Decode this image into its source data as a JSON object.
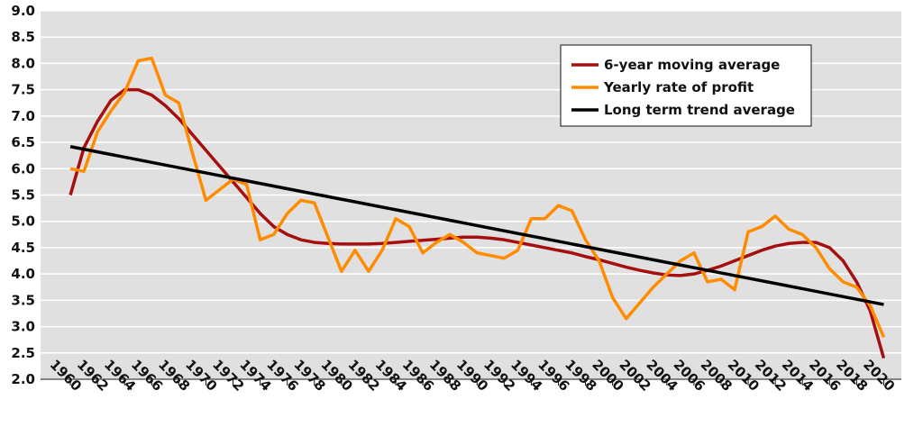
{
  "chart_data": {
    "type": "line",
    "x": [
      1960,
      1961,
      1962,
      1963,
      1964,
      1965,
      1966,
      1967,
      1968,
      1969,
      1970,
      1971,
      1972,
      1973,
      1974,
      1975,
      1976,
      1977,
      1978,
      1979,
      1980,
      1981,
      1982,
      1983,
      1984,
      1985,
      1986,
      1987,
      1988,
      1989,
      1990,
      1991,
      1992,
      1993,
      1994,
      1995,
      1996,
      1997,
      1998,
      1999,
      2000,
      2001,
      2002,
      2003,
      2004,
      2005,
      2006,
      2007,
      2008,
      2009,
      2010,
      2011,
      2012,
      2013,
      2014,
      2015,
      2016,
      2017,
      2018,
      2019,
      2020
    ],
    "series": [
      {
        "name": "6-year moving average",
        "color": "#a50f0f",
        "values": [
          5.5,
          6.4,
          6.9,
          7.3,
          7.5,
          7.5,
          7.4,
          7.2,
          6.95,
          6.65,
          6.35,
          6.05,
          5.75,
          5.45,
          5.15,
          4.9,
          4.75,
          4.65,
          4.6,
          4.58,
          4.57,
          4.57,
          4.57,
          4.58,
          4.6,
          4.62,
          4.64,
          4.66,
          4.68,
          4.7,
          4.7,
          4.68,
          4.65,
          4.6,
          4.55,
          4.5,
          4.45,
          4.4,
          4.33,
          4.27,
          4.2,
          4.13,
          4.07,
          4.02,
          3.98,
          3.97,
          4.0,
          4.07,
          4.15,
          4.25,
          4.35,
          4.45,
          4.53,
          4.58,
          4.6,
          4.6,
          4.5,
          4.25,
          3.85,
          3.3,
          2.4
        ]
      },
      {
        "name": "Yearly rate of profit",
        "color": "#ff8c00",
        "values": [
          6.0,
          5.95,
          6.7,
          7.1,
          7.45,
          8.05,
          8.1,
          7.4,
          7.25,
          6.3,
          5.4,
          5.6,
          5.8,
          5.7,
          4.65,
          4.75,
          5.15,
          5.4,
          5.35,
          4.7,
          4.05,
          4.45,
          4.05,
          4.45,
          5.05,
          4.9,
          4.4,
          4.6,
          4.75,
          4.6,
          4.4,
          4.35,
          4.3,
          4.45,
          5.05,
          5.05,
          5.3,
          5.2,
          4.65,
          4.25,
          3.55,
          3.15,
          3.45,
          3.75,
          4.0,
          4.25,
          4.4,
          3.85,
          3.9,
          3.7,
          4.8,
          4.9,
          5.1,
          4.85,
          4.75,
          4.5,
          4.1,
          3.85,
          3.75,
          3.4,
          2.8
        ]
      },
      {
        "name": "Long term trend average",
        "color": "#000000",
        "x": [
          1960,
          2020
        ],
        "values": [
          6.42,
          3.42
        ]
      }
    ],
    "xlim": [
      1957.8,
      2021.3
    ],
    "xticks": [
      1960,
      1962,
      1964,
      1966,
      1968,
      1970,
      1972,
      1974,
      1976,
      1978,
      1980,
      1982,
      1984,
      1986,
      1988,
      1990,
      1992,
      1994,
      1996,
      1998,
      2000,
      2002,
      2004,
      2006,
      2008,
      2010,
      2012,
      2014,
      2016,
      2018,
      2020
    ],
    "ylim": [
      2,
      9
    ],
    "yticks": [
      {
        "value": 2,
        "label": "2.0"
      },
      2.5,
      {
        "value": 3,
        "label": "3.0"
      },
      3.5,
      {
        "value": 4,
        "label": "4.0"
      },
      4.5,
      {
        "value": 5,
        "label": "5.0"
      },
      5.5,
      {
        "value": 6,
        "label": "6.0"
      },
      6.5,
      {
        "value": 7,
        "label": "7.0"
      },
      7.5,
      {
        "value": 8,
        "label": "8.0"
      },
      8.5,
      {
        "value": 9,
        "label": "9.0"
      }
    ],
    "grid": true,
    "legend": "upper right"
  }
}
